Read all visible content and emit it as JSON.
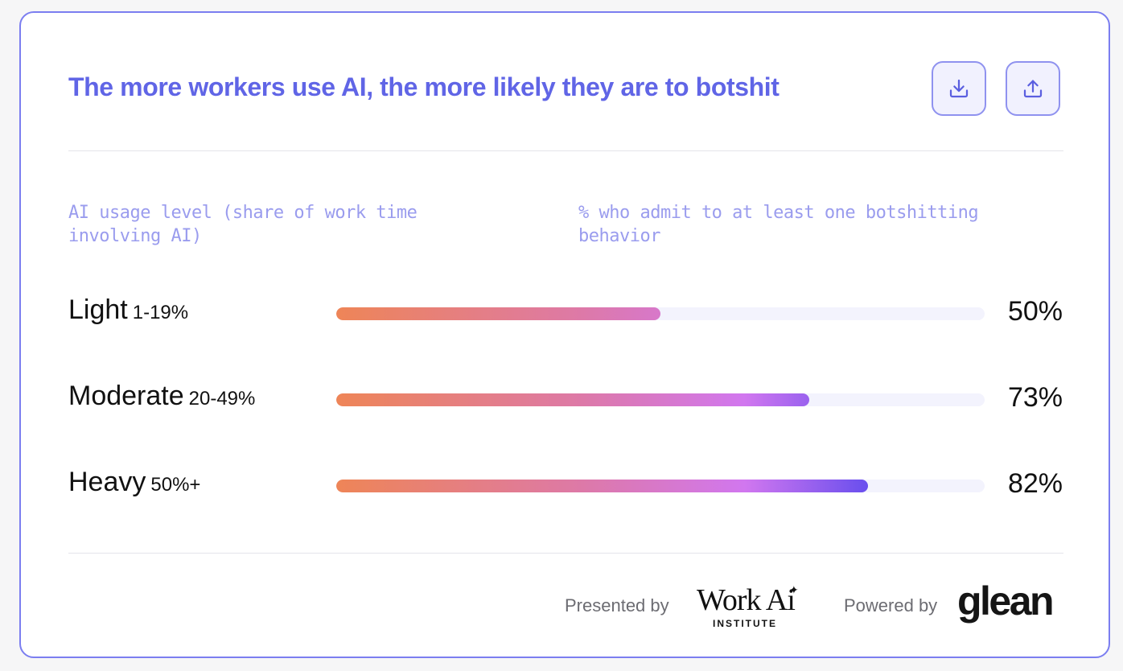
{
  "title": "The more workers use AI, the more likely they are to botshit",
  "buttons": {
    "download_icon": "download-icon",
    "share_icon": "upload-icon"
  },
  "columns": {
    "left": "AI usage level (share of work time involving AI)",
    "right": "% who admit to at least one botshitting behavior"
  },
  "chart_data": {
    "type": "bar",
    "orientation": "horizontal",
    "categories": [
      "Light",
      "Moderate",
      "Heavy"
    ],
    "ranges": [
      "1-19%",
      "20-49%",
      "50%+"
    ],
    "values": [
      50,
      73,
      82
    ],
    "value_labels": [
      "50%",
      "73%",
      "82%"
    ],
    "xlim": [
      0,
      100
    ],
    "colors": {
      "gradient": [
        "#ee8557",
        "#dd79a8",
        "#d177ef",
        "#5848ee",
        "#3b3fe4"
      ],
      "track": "#f3f3fd"
    }
  },
  "footer": {
    "presented_by": "Presented  by",
    "work_ai_logo": "Work Ai",
    "institute": "INSTITUTE",
    "powered_by": "Powered by",
    "glean_logo": "glean"
  },
  "colors": {
    "accent": "#6065e6",
    "border": "#7b7ef0",
    "muted": "#9a9cee"
  }
}
